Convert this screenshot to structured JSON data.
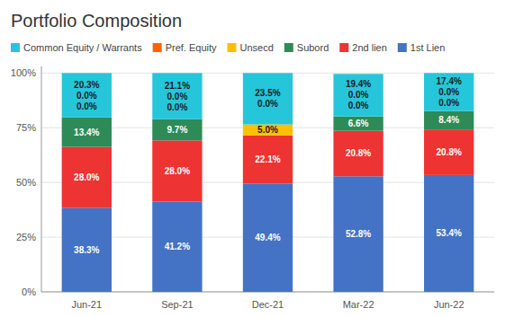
{
  "chart_data": {
    "type": "bar",
    "title": "Portfolio Composition",
    "categories": [
      "Jun-21",
      "Sep-21",
      "Dec-21",
      "Mar-22",
      "Jun-22"
    ],
    "series": [
      {
        "name": "1st Lien",
        "color": "#4472C4",
        "values": [
          38.3,
          41.2,
          49.4,
          52.8,
          53.4
        ],
        "value_labels": [
          "38.3%",
          "41.2%",
          "49.4%",
          "52.8%",
          "53.4%"
        ]
      },
      {
        "name": "2nd lien",
        "color": "#EE3333",
        "values": [
          28.0,
          28.0,
          22.1,
          20.8,
          20.8
        ],
        "value_labels": [
          "28.0%",
          "28.0%",
          "22.1%",
          "20.8%",
          "20.8%"
        ]
      },
      {
        "name": "Subord",
        "color": "#2E8B57",
        "values": [
          13.4,
          9.7,
          0.0,
          6.6,
          8.4
        ],
        "value_labels": [
          "13.4%",
          "9.7%",
          null,
          "6.6%",
          "8.4%"
        ]
      },
      {
        "name": "Unsecd",
        "color": "#FFC000",
        "values": [
          0.0,
          0.0,
          5.0,
          0.0,
          0.0
        ],
        "value_labels": [
          "0.0%",
          "0.0%",
          "5.0%",
          "0.0%",
          "0.0%"
        ]
      },
      {
        "name": "Pref. Equity",
        "color": "#FF6600",
        "values": [
          0.0,
          0.0,
          0.0,
          0.0,
          0.0
        ],
        "value_labels": [
          "0.0%",
          "0.0%",
          "0.0%",
          "0.0%",
          "0.0%"
        ]
      },
      {
        "name": "Common Equity / Warrants",
        "color": "#26C6DA",
        "values": [
          20.3,
          21.1,
          23.5,
          19.4,
          17.4
        ],
        "value_labels": [
          "20.3%",
          "21.1%",
          "23.5%",
          "19.4%",
          "17.4%"
        ]
      }
    ],
    "stacked": true,
    "ylim": [
      0,
      103
    ],
    "yticks": [
      {
        "value": 0,
        "label": "0%"
      },
      {
        "value": 25,
        "label": "25%"
      },
      {
        "value": 50,
        "label": "50%"
      },
      {
        "value": 75,
        "label": "75%"
      },
      {
        "value": 100,
        "label": "100%"
      }
    ],
    "grid": true,
    "legend": "top",
    "data_labels": true
  }
}
